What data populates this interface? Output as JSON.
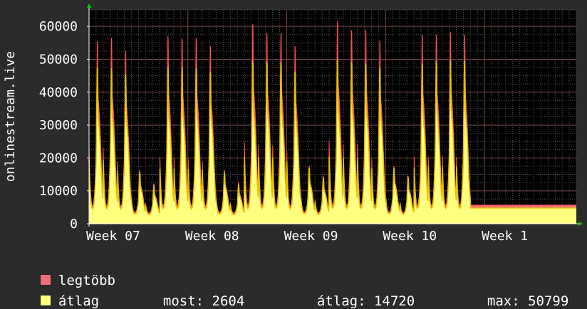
{
  "chart_data": {
    "type": "area",
    "ylabel": "onlinestream.live",
    "ylim": [
      0,
      65000
    ],
    "yticks": [
      0,
      10000,
      20000,
      30000,
      40000,
      50000,
      60000
    ],
    "ytick_labels": [
      "0",
      "10000",
      "20000",
      "30000",
      "40000",
      "50000",
      "60000"
    ],
    "x_range_days": [
      0,
      34.5
    ],
    "xticks": [
      {
        "day": 0,
        "label": "Week 07"
      },
      {
        "day": 7,
        "label": "Week 08"
      },
      {
        "day": 14,
        "label": "Week 09"
      },
      {
        "day": 21,
        "label": "Week 10"
      },
      {
        "day": 28,
        "label": "Week 1"
      }
    ],
    "grid": true,
    "series": [
      {
        "name": "legtöbb",
        "color": "#f0707a",
        "daily_peaks": [
          55500,
          56500,
          52700,
          16200,
          12000,
          57000,
          56500,
          56500,
          54000,
          16300,
          12500,
          60700,
          58000,
          58000,
          54000,
          17500,
          14500,
          61500,
          58800,
          59000,
          55700,
          17500,
          14500,
          57500,
          57500,
          58300,
          57500
        ]
      },
      {
        "name": "átlag",
        "color": "#ffff80",
        "daily_peaks": [
          47500,
          47300,
          45500,
          15400,
          11500,
          47500,
          47500,
          47300,
          46100,
          15500,
          11700,
          49500,
          49400,
          49200,
          46200,
          17000,
          14000,
          50000,
          49000,
          48600,
          47600,
          17000,
          14000,
          48600,
          49500,
          49700,
          49600
        ]
      }
    ]
  },
  "legend": {
    "max_label": "legtöbb",
    "avg_label": "átlag",
    "max_color": "#f0707a",
    "avg_color": "#ffff80"
  },
  "stats": {
    "now_label": "most:",
    "now_value": "2604",
    "avg_label": "átlag:",
    "avg_value": "14720",
    "max_label": "max:",
    "max_value": "50799"
  }
}
